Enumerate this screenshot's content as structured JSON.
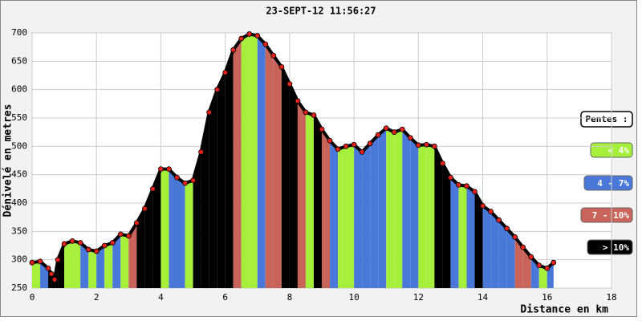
{
  "chart_data": {
    "type": "elevation-profile",
    "title": "23-SEPT-12 11:56:27",
    "y_label": "Dénivelé en metres",
    "x_label": "Distance en km",
    "x": [
      0,
      0.25,
      0.5,
      0.6,
      0.7,
      0.8,
      1,
      1.25,
      1.5,
      1.75,
      2,
      2.25,
      2.5,
      2.75,
      3,
      3.25,
      3.5,
      3.75,
      4,
      4.25,
      4.5,
      4.75,
      5,
      5.25,
      5.5,
      5.75,
      6,
      6.25,
      6.5,
      6.75,
      7,
      7.25,
      7.5,
      7.75,
      8,
      8.25,
      8.5,
      8.75,
      9,
      9.25,
      9.5,
      9.75,
      10,
      10.25,
      10.5,
      10.75,
      11,
      11.25,
      11.5,
      11.75,
      12,
      12.25,
      12.5,
      12.75,
      13,
      13.25,
      13.5,
      13.75,
      14,
      14.25,
      14.5,
      14.75,
      15,
      15.25,
      15.5,
      15.75,
      16,
      16.2
    ],
    "values": [
      295,
      297,
      285,
      275,
      265,
      300,
      328,
      333,
      330,
      318,
      315,
      325,
      330,
      345,
      342,
      365,
      390,
      425,
      460,
      460,
      445,
      435,
      440,
      490,
      560,
      600,
      630,
      670,
      690,
      698,
      695,
      680,
      660,
      640,
      610,
      580,
      560,
      555,
      530,
      510,
      495,
      500,
      503,
      490,
      505,
      520,
      532,
      525,
      530,
      515,
      502,
      503,
      500,
      470,
      445,
      432,
      430,
      420,
      395,
      385,
      370,
      355,
      340,
      322,
      305,
      290,
      285,
      295
    ],
    "segment_colors": [
      "#a6f03c",
      "#4a78d8",
      "#000000",
      "#000000",
      "#000000",
      "#000000",
      "#a6f03c",
      "#a6f03c",
      "#4a78d8",
      "#a6f03c",
      "#4a78d8",
      "#a6f03c",
      "#4a78d8",
      "#a6f03c",
      "#c8645a",
      "#000000",
      "#000000",
      "#000000",
      "#a6f03c",
      "#4a78d8",
      "#4a78d8",
      "#a6f03c",
      "#000000",
      "#000000",
      "#000000",
      "#000000",
      "#000000",
      "#c8645a",
      "#a6f03c",
      "#a6f03c",
      "#4a78d8",
      "#c8645a",
      "#c8645a",
      "#000000",
      "#000000",
      "#c8645a",
      "#a6f03c",
      "#000000",
      "#c8645a",
      "#4a78d8",
      "#a6f03c",
      "#a6f03c",
      "#4a78d8",
      "#4a78d8",
      "#4a78d8",
      "#4a78d8",
      "#a6f03c",
      "#a6f03c",
      "#4a78d8",
      "#4a78d8",
      "#a6f03c",
      "#a6f03c",
      "#000000",
      "#000000",
      "#4a78d8",
      "#a6f03c",
      "#4a78d8",
      "#000000",
      "#4a78d8",
      "#4a78d8",
      "#4a78d8",
      "#4a78d8",
      "#c8645a",
      "#c8645a",
      "#4a78d8",
      "#a6f03c",
      "#4a78d8"
    ],
    "marker_color": "#e8201a",
    "xlim": [
      0,
      18
    ],
    "xticks": [
      0,
      2,
      4,
      6,
      8,
      10,
      12,
      14,
      16,
      18
    ],
    "ylim": [
      250,
      700
    ],
    "yticks": [
      250,
      300,
      350,
      400,
      450,
      500,
      550,
      600,
      650,
      700
    ],
    "grid": true,
    "legend_title": "Pentes :",
    "legend": [
      {
        "label": "< 4%",
        "color": "#a6f03c"
      },
      {
        "label": "4 - 7%",
        "color": "#4a78d8"
      },
      {
        "label": "7 - 10%",
        "color": "#c8645a"
      },
      {
        "label": "> 10%",
        "color": "#000000"
      }
    ]
  }
}
